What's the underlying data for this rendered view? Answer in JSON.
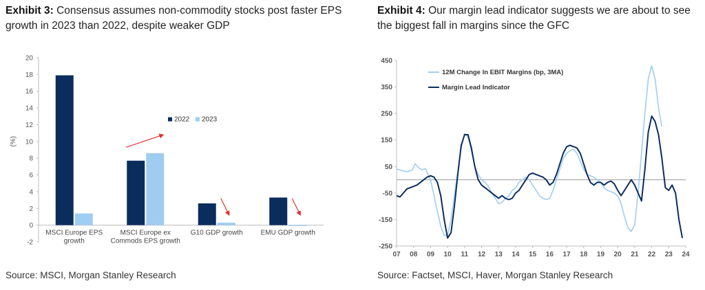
{
  "left": {
    "exhibit": "Exhibit 3:",
    "title": "Consensus assumes non-commodity stocks post faster EPS growth in 2023 than 2022, despite weaker GDP",
    "source": "Source: MSCI, Morgan Stanley Research",
    "chart_data": {
      "type": "bar",
      "ylabel": "(%)",
      "ylim": [
        -2,
        20
      ],
      "yticks": [
        -2,
        0,
        2,
        4,
        6,
        8,
        10,
        12,
        14,
        16,
        18,
        20
      ],
      "categories": [
        [
          "MSCI Europe EPS",
          "growth"
        ],
        [
          "MSCI Europe ex",
          "Commods EPS growth"
        ],
        [
          "G10 GDP growth"
        ],
        [
          "EMU GDP growth"
        ]
      ],
      "series": [
        {
          "name": "2022",
          "color": "#0b2d5e",
          "values": [
            17.9,
            7.7,
            2.6,
            3.3
          ]
        },
        {
          "name": "2023",
          "color": "#9fcdf2",
          "values": [
            1.4,
            8.6,
            0.3,
            -0.1
          ]
        }
      ],
      "legend": "top-right",
      "arrows": [
        {
          "category": 1,
          "direction": "up",
          "color": "#e0322c"
        },
        {
          "category": 2,
          "direction": "down",
          "color": "#e0322c"
        },
        {
          "category": 3,
          "direction": "down",
          "color": "#e0322c"
        }
      ]
    }
  },
  "right": {
    "exhibit": "Exhibit 4:",
    "title": "Our margin lead indicator suggests we are about to see the biggest fall in margins since the GFC",
    "source": "Source: Factset, MSCI, Haver, Morgan Stanley Research",
    "chart_data": {
      "type": "line",
      "ylim": [
        -250,
        450
      ],
      "yticks": [
        -250,
        -150,
        -50,
        50,
        150,
        250,
        350,
        450
      ],
      "xlim": [
        7,
        24
      ],
      "xticks": [
        7,
        8,
        9,
        10,
        11,
        12,
        13,
        14,
        15,
        16,
        17,
        18,
        19,
        20,
        21,
        22,
        23,
        24
      ],
      "xticklabels": [
        "07",
        "08",
        "09",
        "10",
        "11",
        "12",
        "13",
        "14",
        "15",
        "16",
        "17",
        "18",
        "19",
        "20",
        "21",
        "22",
        "23",
        "24"
      ],
      "reference_line": 0,
      "legend": "top-left",
      "series": [
        {
          "name": "12M Change In EBIT Margins (bp, 3MA)",
          "color": "#9fcdf2",
          "points": [
            [
              7.0,
              40
            ],
            [
              7.3,
              35
            ],
            [
              7.6,
              30
            ],
            [
              7.9,
              35
            ],
            [
              8.1,
              60
            ],
            [
              8.3,
              45
            ],
            [
              8.5,
              38
            ],
            [
              8.7,
              42
            ],
            [
              9.0,
              0
            ],
            [
              9.2,
              -60
            ],
            [
              9.4,
              -120
            ],
            [
              9.6,
              -175
            ],
            [
              9.8,
              -210
            ],
            [
              10.0,
              -210
            ],
            [
              10.2,
              -150
            ],
            [
              10.4,
              -60
            ],
            [
              10.6,
              30
            ],
            [
              10.8,
              120
            ],
            [
              11.0,
              175
            ],
            [
              11.2,
              160
            ],
            [
              11.4,
              110
            ],
            [
              11.6,
              50
            ],
            [
              11.8,
              20
            ],
            [
              12.0,
              0
            ],
            [
              12.2,
              -10
            ],
            [
              12.4,
              -25
            ],
            [
              12.6,
              -50
            ],
            [
              12.8,
              -70
            ],
            [
              13.0,
              -90
            ],
            [
              13.2,
              -85
            ],
            [
              13.4,
              -70
            ],
            [
              13.6,
              -60
            ],
            [
              13.8,
              -40
            ],
            [
              14.0,
              -30
            ],
            [
              14.2,
              -10
            ],
            [
              14.4,
              0
            ],
            [
              14.6,
              10
            ],
            [
              14.8,
              0
            ],
            [
              15.0,
              -20
            ],
            [
              15.2,
              -40
            ],
            [
              15.4,
              -60
            ],
            [
              15.6,
              -70
            ],
            [
              15.8,
              -75
            ],
            [
              16.0,
              -70
            ],
            [
              16.2,
              -40
            ],
            [
              16.4,
              0
            ],
            [
              16.6,
              40
            ],
            [
              16.8,
              80
            ],
            [
              17.0,
              100
            ],
            [
              17.2,
              110
            ],
            [
              17.4,
              115
            ],
            [
              17.6,
              100
            ],
            [
              17.8,
              70
            ],
            [
              18.0,
              40
            ],
            [
              18.2,
              20
            ],
            [
              18.4,
              15
            ],
            [
              18.6,
              10
            ],
            [
              18.8,
              0
            ],
            [
              19.0,
              -10
            ],
            [
              19.2,
              -30
            ],
            [
              19.4,
              -40
            ],
            [
              19.6,
              -45
            ],
            [
              19.8,
              -50
            ],
            [
              20.0,
              -60
            ],
            [
              20.2,
              -90
            ],
            [
              20.4,
              -140
            ],
            [
              20.6,
              -180
            ],
            [
              20.8,
              -195
            ],
            [
              21.0,
              -170
            ],
            [
              21.2,
              -50
            ],
            [
              21.4,
              100
            ],
            [
              21.6,
              250
            ],
            [
              21.8,
              380
            ],
            [
              22.0,
              430
            ],
            [
              22.2,
              380
            ],
            [
              22.4,
              270
            ],
            [
              22.6,
              200
            ]
          ]
        },
        {
          "name": "Margin Lead Indicator",
          "color": "#0b2d5e",
          "points": [
            [
              7.0,
              -60
            ],
            [
              7.2,
              -65
            ],
            [
              7.4,
              -50
            ],
            [
              7.6,
              -35
            ],
            [
              7.8,
              -30
            ],
            [
              8.0,
              -25
            ],
            [
              8.2,
              -20
            ],
            [
              8.4,
              -10
            ],
            [
              8.6,
              0
            ],
            [
              8.8,
              10
            ],
            [
              9.0,
              15
            ],
            [
              9.2,
              10
            ],
            [
              9.4,
              -10
            ],
            [
              9.6,
              -60
            ],
            [
              9.8,
              -150
            ],
            [
              10.0,
              -220
            ],
            [
              10.2,
              -200
            ],
            [
              10.4,
              -100
            ],
            [
              10.6,
              20
            ],
            [
              10.8,
              130
            ],
            [
              11.0,
              170
            ],
            [
              11.2,
              170
            ],
            [
              11.4,
              120
            ],
            [
              11.6,
              50
            ],
            [
              11.8,
              0
            ],
            [
              12.0,
              -20
            ],
            [
              12.2,
              -30
            ],
            [
              12.4,
              -40
            ],
            [
              12.6,
              -50
            ],
            [
              12.8,
              -60
            ],
            [
              13.0,
              -70
            ],
            [
              13.2,
              -60
            ],
            [
              13.4,
              -70
            ],
            [
              13.6,
              -75
            ],
            [
              13.8,
              -70
            ],
            [
              14.0,
              -50
            ],
            [
              14.2,
              -40
            ],
            [
              14.4,
              -20
            ],
            [
              14.6,
              0
            ],
            [
              14.8,
              20
            ],
            [
              15.0,
              25
            ],
            [
              15.2,
              20
            ],
            [
              15.4,
              15
            ],
            [
              15.6,
              10
            ],
            [
              15.8,
              0
            ],
            [
              16.0,
              -20
            ],
            [
              16.2,
              -10
            ],
            [
              16.4,
              20
            ],
            [
              16.6,
              60
            ],
            [
              16.8,
              100
            ],
            [
              17.0,
              125
            ],
            [
              17.2,
              130
            ],
            [
              17.4,
              125
            ],
            [
              17.6,
              120
            ],
            [
              17.8,
              100
            ],
            [
              18.0,
              60
            ],
            [
              18.2,
              20
            ],
            [
              18.4,
              -10
            ],
            [
              18.6,
              -20
            ],
            [
              18.8,
              -10
            ],
            [
              19.0,
              -10
            ],
            [
              19.2,
              -20
            ],
            [
              19.4,
              -10
            ],
            [
              19.6,
              -5
            ],
            [
              19.8,
              -15
            ],
            [
              20.0,
              -40
            ],
            [
              20.2,
              -60
            ],
            [
              20.4,
              -40
            ],
            [
              20.6,
              -20
            ],
            [
              20.8,
              0
            ],
            [
              21.0,
              -20
            ],
            [
              21.2,
              -50
            ],
            [
              21.4,
              -80
            ],
            [
              21.6,
              40
            ],
            [
              21.8,
              180
            ],
            [
              22.0,
              240
            ],
            [
              22.2,
              220
            ],
            [
              22.4,
              170
            ],
            [
              22.6,
              80
            ],
            [
              22.8,
              -30
            ],
            [
              23.0,
              -40
            ],
            [
              23.2,
              -20
            ],
            [
              23.4,
              -50
            ],
            [
              23.6,
              -150
            ],
            [
              23.8,
              -220
            ]
          ]
        }
      ]
    }
  }
}
